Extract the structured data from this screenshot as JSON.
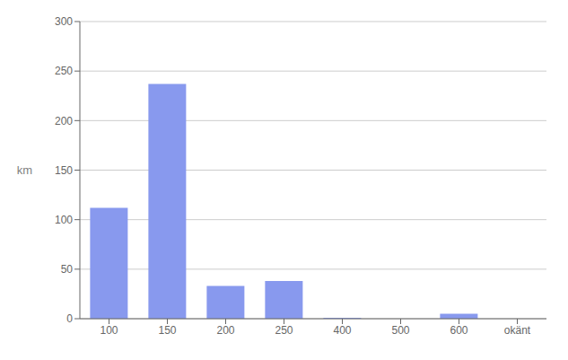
{
  "chart_data": {
    "type": "bar",
    "categories": [
      "100",
      "150",
      "200",
      "250",
      "400",
      "500",
      "600",
      "okänt"
    ],
    "values": [
      112,
      237,
      33,
      38,
      1,
      0,
      5,
      0
    ],
    "color": "#8899ee",
    "ylabel": "km",
    "ylim": [
      0,
      300
    ],
    "yticks": [
      0,
      50,
      100,
      150,
      200,
      250,
      300
    ],
    "grid": true
  }
}
